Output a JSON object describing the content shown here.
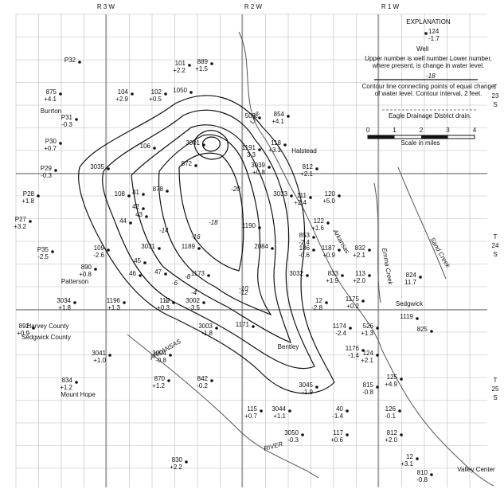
{
  "ranges": [
    "R 3 W",
    "R 2 W",
    "R 1 W"
  ],
  "townships": [
    [
      "T",
      "23",
      "S"
    ],
    [
      "T",
      "24",
      "S"
    ],
    [
      "T",
      "25",
      "S"
    ]
  ],
  "explanation": {
    "title": "EXPLANATION",
    "sample_number": "124",
    "sample_change": "-1.7",
    "well": "Well",
    "well_note_1": "Upper number is well number   Lower number,",
    "well_note_2": "where present, is change in water level.",
    "contour_sample": "-18",
    "contour_note_1": "Contour line connecting points of equal change",
    "contour_note_2": "of water level.   Contour interval, 2 feet.",
    "drain": "Eagle Drainage District drain.",
    "scale_ticks": [
      "0",
      "1",
      "2",
      "3",
      "4"
    ],
    "scale_label": "Scale in miles"
  },
  "places": [
    "Burrton",
    "Halstead",
    "Patterson",
    "Harvey County",
    "Sedgwick County",
    "Mount Hope",
    "Bentley",
    "Sedgwick",
    "Valley Center"
  ],
  "features": [
    "ARKANSAS",
    "RIVER",
    "Little",
    "Arkansas",
    "Emma Creek",
    "Sand Creek"
  ],
  "contour_labels": [
    "-2",
    "-4",
    "-6",
    "-8",
    "-10",
    "-12",
    "-14",
    "-16",
    "-18",
    "-20"
  ],
  "wells": [
    {
      "number": "P32"
    },
    {
      "number": "101",
      "change": "+2.2"
    },
    {
      "number": "889",
      "change": "+1.5"
    },
    {
      "number": "875",
      "change": "+4.1"
    },
    {
      "number": "104",
      "change": "+2.9"
    },
    {
      "number": "102",
      "change": "+0.5"
    },
    {
      "number": "1050"
    },
    {
      "number": "P31",
      "change": "-0.3"
    },
    {
      "number": "506"
    },
    {
      "number": "854",
      "change": "+4.1"
    },
    {
      "number": "P30",
      "change": "+0.7"
    },
    {
      "number": "1191",
      "change": "3.3"
    },
    {
      "number": "118",
      "change": "+3.1"
    },
    {
      "number": "3001"
    },
    {
      "number": "106"
    },
    {
      "number": "P29",
      "change": "-0.3"
    },
    {
      "number": "3035"
    },
    {
      "number": "872"
    },
    {
      "number": "3039",
      "change": "+0.8"
    },
    {
      "number": "812",
      "change": "+2.1"
    },
    {
      "number": "P28",
      "change": "+1.8"
    },
    {
      "number": "P27",
      "change": "+3.2"
    },
    {
      "number": "108"
    },
    {
      "number": "41"
    },
    {
      "number": "878"
    },
    {
      "number": "111",
      "change": "+2.4"
    },
    {
      "number": "120",
      "change": "+5.0"
    },
    {
      "number": "3033"
    },
    {
      "number": "44"
    },
    {
      "number": "42"
    },
    {
      "number": "43"
    },
    {
      "number": "122",
      "change": "+1.6"
    },
    {
      "number": "853",
      "change": "-2.4"
    },
    {
      "number": "P35",
      "change": "-2.5"
    },
    {
      "number": "109",
      "change": "-2.6"
    },
    {
      "number": "3031"
    },
    {
      "number": "1190"
    },
    {
      "number": "1187",
      "change": "+0.9"
    },
    {
      "number": "832",
      "change": "+2.1"
    },
    {
      "number": "186",
      "change": "-0.6"
    },
    {
      "number": "890",
      "change": "+0.8"
    },
    {
      "number": "2084"
    },
    {
      "number": "1189"
    },
    {
      "number": "45"
    },
    {
      "number": "46"
    },
    {
      "number": "47"
    },
    {
      "number": "1173"
    },
    {
      "number": "3032"
    },
    {
      "number": "833",
      "change": "+1.9"
    },
    {
      "number": "113",
      "change": "+2.0"
    },
    {
      "number": "824",
      "change": "11.7"
    },
    {
      "number": "3034",
      "change": "+1.8"
    },
    {
      "number": "1196",
      "change": "+1.3"
    },
    {
      "number": "110",
      "change": "+0.3"
    },
    {
      "number": "3002",
      "change": "-3.5"
    },
    {
      "number": "1175",
      "change": "+0.2"
    },
    {
      "number": "12",
      "change": "-2.8"
    },
    {
      "number": "892",
      "change": "+0.9"
    },
    {
      "number": "1171"
    },
    {
      "number": "3003",
      "change": "-1.8"
    },
    {
      "number": "1174",
      "change": "-2.4"
    },
    {
      "number": "526",
      "change": "+1.3"
    },
    {
      "number": "825"
    },
    {
      "number": "1119"
    },
    {
      "number": "3041",
      "change": "+1.0"
    },
    {
      "number": "3004",
      "change": "-0.8"
    },
    {
      "number": "1176",
      "change": "-1.4"
    },
    {
      "number": "124",
      "change": "+2.1"
    },
    {
      "number": "125",
      "change": "+4.9"
    },
    {
      "number": "834",
      "change": "+1.2"
    },
    {
      "number": "870",
      "change": "+1.2"
    },
    {
      "number": "842",
      "change": "-0.2"
    },
    {
      "number": "3045",
      "change": "-1.9"
    },
    {
      "number": "815",
      "change": "-0.8"
    },
    {
      "number": "115",
      "change": "+0.7"
    },
    {
      "number": "3044",
      "change": "+1.1"
    },
    {
      "number": "40",
      "change": "-1.4"
    },
    {
      "number": "126",
      "change": "-0.1"
    },
    {
      "number": "3050",
      "change": "-0.3"
    },
    {
      "number": "117",
      "change": "+0.6"
    },
    {
      "number": "812",
      "change": "+2.0"
    },
    {
      "number": "830",
      "change": "+2.2"
    },
    {
      "number": "12",
      "change": "+3.1"
    },
    {
      "number": "810",
      "change": "-0.8"
    }
  ]
}
